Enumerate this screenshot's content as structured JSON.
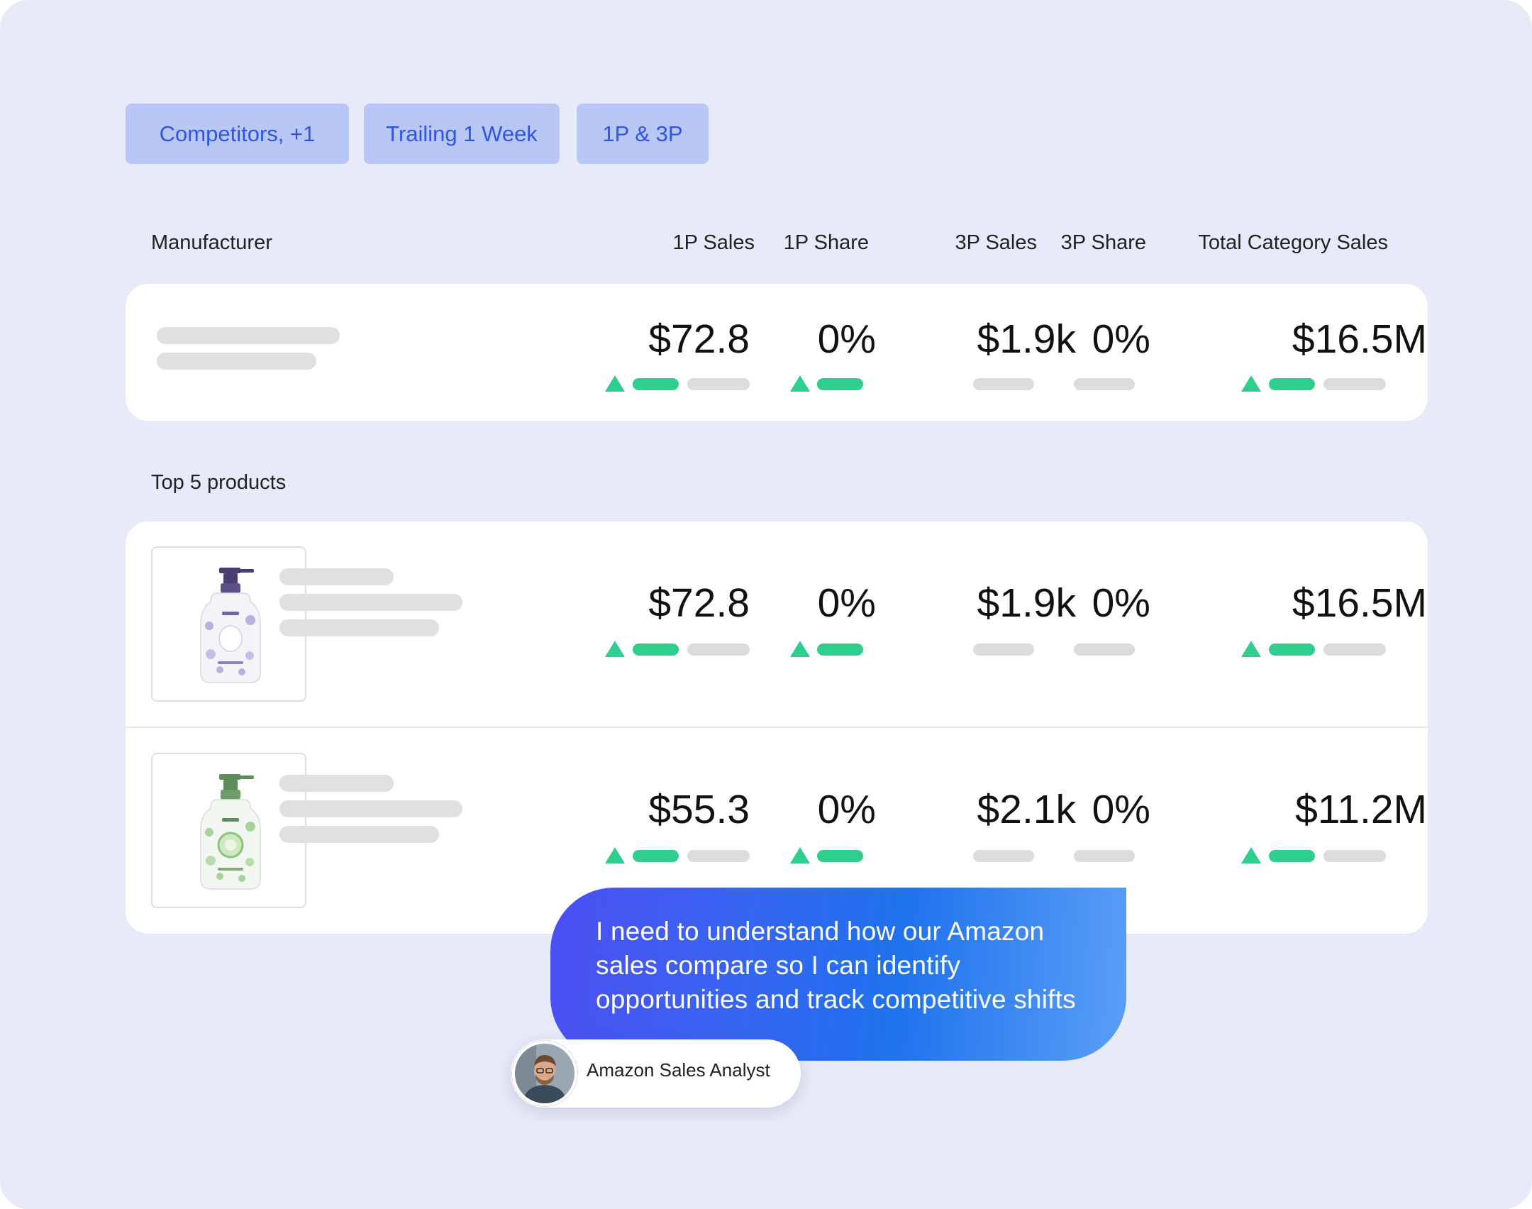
{
  "filters": [
    {
      "label": "Competitors, +1"
    },
    {
      "label": "Trailing 1 Week"
    },
    {
      "label": "1P & 3P"
    }
  ],
  "columns": {
    "manufacturer": "Manufacturer",
    "sales_1p": "1P Sales",
    "share_1p": "1P Share",
    "sales_3p": "3P Sales",
    "share_3p": "3P Share",
    "total": "Total Category Sales"
  },
  "manufacturer_row": {
    "sales_1p": "$72.8",
    "share_1p": "0%",
    "sales_3p": "$1.9k",
    "share_3p": "0%",
    "total": "$16.5M"
  },
  "products_label": "Top 5 products",
  "products": [
    {
      "sales_1p": "$72.8",
      "share_1p": "0%",
      "sales_3p": "$1.9k",
      "share_3p": "0%",
      "total": "$16.5M",
      "image": "lavender-soap-bottle"
    },
    {
      "sales_1p": "$55.3",
      "share_1p": "0%",
      "sales_3p": "$2.1k",
      "share_3p": "0%",
      "total": "$11.2M",
      "image": "cucumber-soap-bottle"
    }
  ],
  "trend_icon": "up-triangle-icon",
  "colors": {
    "background": "#e7eaf8",
    "chip": "#b9c7f6",
    "chip_text": "#2f55e6",
    "trend_up": "#2ecf8e",
    "bubble_start": "#4c4ff2",
    "bubble_end": "#5a9ff7"
  },
  "quote": "I need to understand how our Amazon sales compare so I can identify opportunities and track competitive shifts",
  "persona": {
    "name": "Amazon Sales Analyst"
  }
}
